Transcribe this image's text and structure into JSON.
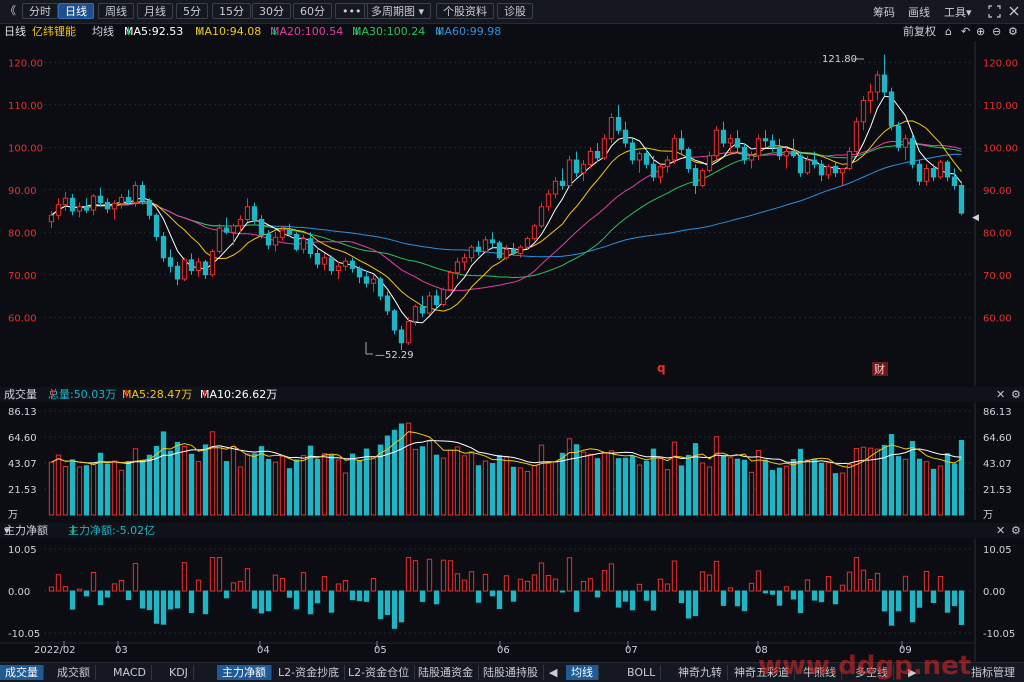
{
  "toolbar": {
    "back": "《",
    "items": [
      "分时",
      "日线",
      "周线",
      "月线",
      "5分",
      "15分",
      "30分",
      "60分",
      "•••",
      "多周期图",
      "个股资料",
      "诊股"
    ],
    "active_index": 1,
    "multi_dropdown_icon": "▾",
    "right_items": [
      "筹码",
      "画线",
      "工具"
    ],
    "tools_dropdown_icon": "▾"
  },
  "infobar": {
    "period": "日线",
    "stock_name": "亿纬锂能",
    "ma_label": "均线",
    "ma5": "MA5:92.53",
    "ma10": "MA10:94.08",
    "ma20": "MA20:100.54",
    "ma30": "MA30:100.24",
    "ma60": "MA60:99.98",
    "arrow_down": "↓",
    "adjust": "前复权"
  },
  "colors": {
    "up": "#e8302c",
    "down": "#1fb5c5",
    "ma5": "#ffffff",
    "ma10": "#f5c518",
    "ma20": "#e040a0",
    "ma30": "#2cc25a",
    "ma60": "#2f8fe0",
    "axis_text": "#e8302c"
  },
  "price_chart": {
    "y_ticks": [
      "120.00",
      "110.00",
      "100.00",
      "90.00",
      "80.00",
      "70.00",
      "60.00"
    ],
    "max_label": "121.80",
    "min_label": "52.29",
    "marker_q": "q",
    "marker_cai": "财",
    "current_marker": "◀"
  },
  "volume": {
    "title": "成交量",
    "total": "总量:50.03万",
    "ma5": "MA5:28.47万",
    "ma10": "MA10:26.62万",
    "arrow_up": "↑",
    "y_ticks": [
      "86.13",
      "64.60",
      "43.07",
      "21.53",
      "万"
    ]
  },
  "moneyflow": {
    "title": "主力净额",
    "dropdown_icon": "▾",
    "value": "主力净额:-5.02亿",
    "arrow_down": "↓",
    "y_ticks": [
      "10.05",
      "0.00",
      "-10.05"
    ]
  },
  "xaxis": [
    "2022/02",
    "03",
    "04",
    "05",
    "06",
    "07",
    "08",
    "09"
  ],
  "bottom_tabs_left": [
    "成交量",
    "成交额",
    "MACD",
    "KDJ",
    "主力净额",
    "L2-资金抄底",
    "L2-资金仓位",
    "陆股通资金",
    "陆股通持股"
  ],
  "bottom_tabs_right": [
    "均线",
    "BOLL",
    "神奇九转",
    "神奇五彩道",
    "牛熊线",
    "多空线"
  ],
  "bottom_tabs_end": "指标管理",
  "watermark": "www.ddgp.net",
  "chart_data": {
    "type": "candlestick",
    "title": "亿纬锂能 日线",
    "ylim": [
      45,
      125
    ],
    "x_range": [
      "2022/02",
      "2022/09"
    ],
    "annotations": {
      "high": 121.8,
      "low": 52.29
    },
    "ohlc": [
      [
        82.5,
        85.0,
        81.0,
        84.0
      ],
      [
        84.0,
        88.0,
        83.0,
        86.5
      ],
      [
        86.5,
        89.5,
        85.0,
        88.0
      ],
      [
        88.0,
        89.0,
        84.0,
        85.0
      ],
      [
        85.0,
        87.0,
        83.5,
        86.0
      ],
      [
        86.0,
        88.0,
        84.5,
        85.2
      ],
      [
        85.2,
        89.0,
        84.0,
        88.5
      ],
      [
        88.5,
        90.5,
        86.0,
        87.0
      ],
      [
        87.0,
        88.0,
        84.5,
        85.5
      ],
      [
        85.5,
        87.5,
        83.0,
        86.8
      ],
      [
        86.8,
        89.0,
        85.5,
        88.2
      ],
      [
        88.2,
        90.0,
        86.5,
        87.0
      ],
      [
        87.0,
        92.0,
        86.0,
        91.0
      ],
      [
        91.0,
        92.0,
        86.5,
        87.5
      ],
      [
        87.5,
        88.0,
        83.0,
        84.0
      ],
      [
        84.0,
        84.5,
        78.0,
        79.0
      ],
      [
        79.0,
        80.0,
        73.0,
        74.0
      ],
      [
        74.0,
        76.0,
        70.5,
        72.0
      ],
      [
        72.0,
        73.0,
        67.5,
        69.0
      ],
      [
        69.0,
        74.0,
        68.5,
        73.5
      ],
      [
        73.5,
        75.0,
        70.0,
        71.0
      ],
      [
        71.0,
        74.0,
        69.5,
        73.0
      ],
      [
        73.0,
        73.5,
        69.0,
        70.0
      ],
      [
        70.0,
        76.0,
        69.5,
        75.5
      ],
      [
        75.5,
        82.0,
        75.0,
        81.0
      ],
      [
        81.0,
        83.5,
        79.5,
        80.0
      ],
      [
        80.0,
        82.0,
        77.0,
        81.5
      ],
      [
        81.5,
        84.0,
        80.0,
        83.0
      ],
      [
        83.0,
        88.0,
        82.5,
        86.0
      ],
      [
        86.0,
        87.0,
        82.0,
        83.0
      ],
      [
        83.0,
        84.0,
        78.5,
        79.5
      ],
      [
        79.5,
        80.5,
        76.0,
        77.0
      ],
      [
        77.0,
        80.0,
        75.5,
        78.8
      ],
      [
        78.8,
        81.5,
        78.0,
        80.5
      ],
      [
        80.5,
        82.0,
        79.0,
        79.5
      ],
      [
        79.5,
        80.0,
        75.5,
        76.0
      ],
      [
        76.0,
        79.5,
        75.0,
        78.5
      ],
      [
        78.5,
        80.0,
        74.0,
        75.0
      ],
      [
        75.0,
        76.0,
        71.5,
        72.5
      ],
      [
        72.5,
        75.0,
        71.0,
        74.0
      ],
      [
        74.0,
        74.5,
        70.0,
        71.0
      ],
      [
        71.0,
        73.0,
        69.0,
        72.0
      ],
      [
        72.0,
        74.0,
        71.0,
        73.2
      ],
      [
        73.2,
        74.0,
        70.5,
        71.5
      ],
      [
        71.5,
        72.0,
        68.0,
        69.5
      ],
      [
        69.5,
        71.0,
        67.0,
        68.0
      ],
      [
        68.0,
        70.0,
        66.0,
        69.0
      ],
      [
        69.0,
        69.5,
        64.0,
        65.0
      ],
      [
        65.0,
        66.0,
        60.5,
        61.5
      ],
      [
        61.5,
        62.0,
        56.0,
        57.0
      ],
      [
        57.0,
        58.0,
        52.29,
        54.0
      ],
      [
        54.0,
        60.0,
        53.5,
        59.0
      ],
      [
        59.0,
        63.0,
        58.0,
        62.5
      ],
      [
        62.5,
        65.0,
        60.0,
        61.0
      ],
      [
        61.0,
        66.0,
        60.5,
        65.0
      ],
      [
        65.0,
        66.5,
        62.0,
        63.0
      ],
      [
        63.0,
        67.0,
        62.5,
        66.5
      ],
      [
        66.5,
        71.0,
        66.0,
        70.5
      ],
      [
        70.5,
        74.0,
        69.0,
        73.0
      ],
      [
        73.0,
        75.0,
        71.0,
        74.0
      ],
      [
        74.0,
        77.0,
        73.0,
        76.5
      ],
      [
        76.5,
        78.0,
        74.5,
        75.5
      ],
      [
        75.5,
        79.0,
        75.0,
        78.2
      ],
      [
        78.2,
        80.0,
        76.5,
        77.5
      ],
      [
        77.5,
        78.0,
        73.5,
        74.0
      ],
      [
        74.0,
        77.0,
        73.5,
        76.0
      ],
      [
        76.0,
        77.5,
        74.5,
        75.0
      ],
      [
        75.0,
        77.0,
        74.0,
        76.5
      ],
      [
        76.5,
        79.0,
        76.0,
        78.5
      ],
      [
        78.5,
        82.0,
        78.0,
        81.5
      ],
      [
        81.5,
        87.0,
        81.0,
        86.0
      ],
      [
        86.0,
        90.0,
        85.0,
        89.0
      ],
      [
        89.0,
        93.0,
        88.0,
        92.0
      ],
      [
        92.0,
        95.0,
        90.0,
        91.0
      ],
      [
        91.0,
        98.0,
        90.5,
        97.0
      ],
      [
        97.0,
        99.0,
        93.0,
        94.0
      ],
      [
        94.0,
        97.0,
        92.0,
        96.0
      ],
      [
        96.0,
        100.0,
        95.0,
        99.0
      ],
      [
        99.0,
        101.0,
        96.5,
        97.5
      ],
      [
        97.5,
        103.0,
        97.0,
        102.0
      ],
      [
        102.0,
        108.0,
        101.0,
        107.0
      ],
      [
        107.0,
        110.0,
        103.0,
        104.0
      ],
      [
        104.0,
        106.0,
        100.0,
        101.0
      ],
      [
        101.0,
        102.0,
        96.0,
        97.0
      ],
      [
        97.0,
        99.0,
        94.0,
        98.5
      ],
      [
        98.5,
        100.0,
        95.0,
        96.0
      ],
      [
        96.0,
        98.0,
        92.0,
        93.0
      ],
      [
        93.0,
        96.0,
        91.5,
        95.5
      ],
      [
        95.5,
        98.0,
        94.0,
        97.0
      ],
      [
        97.0,
        103.0,
        96.0,
        102.0
      ],
      [
        102.0,
        104.0,
        98.5,
        99.5
      ],
      [
        99.5,
        100.0,
        94.0,
        95.0
      ],
      [
        95.0,
        96.0,
        89.0,
        91.0
      ],
      [
        91.0,
        95.0,
        90.5,
        94.5
      ],
      [
        94.5,
        99.0,
        94.0,
        98.0
      ],
      [
        98.0,
        105.0,
        97.0,
        104.0
      ],
      [
        104.0,
        106.0,
        100.0,
        101.0
      ],
      [
        101.0,
        103.0,
        98.5,
        102.0
      ],
      [
        102.0,
        104.0,
        99.0,
        100.0
      ],
      [
        100.0,
        101.0,
        96.0,
        97.0
      ],
      [
        97.0,
        99.0,
        95.0,
        98.0
      ],
      [
        98.0,
        103.0,
        97.0,
        102.0
      ],
      [
        102.0,
        104.0,
        100.0,
        101.5
      ],
      [
        101.5,
        103.0,
        99.0,
        100.0
      ],
      [
        100.0,
        102.0,
        97.0,
        98.0
      ],
      [
        98.0,
        100.0,
        95.0,
        99.0
      ],
      [
        99.0,
        102.0,
        97.5,
        98.0
      ],
      [
        98.0,
        99.0,
        93.0,
        94.0
      ],
      [
        94.0,
        98.0,
        93.5,
        97.0
      ],
      [
        97.0,
        99.0,
        95.0,
        96.0
      ],
      [
        96.0,
        97.0,
        92.0,
        93.5
      ],
      [
        93.5,
        96.0,
        92.5,
        95.5
      ],
      [
        95.5,
        96.5,
        93.0,
        94.0
      ],
      [
        94.0,
        95.0,
        91.0,
        95.0
      ],
      [
        95.0,
        100.0,
        94.5,
        99.0
      ],
      [
        99.0,
        107.0,
        98.0,
        106.0
      ],
      [
        106.0,
        112.0,
        104.0,
        111.0
      ],
      [
        111.0,
        115.0,
        108.0,
        113.0
      ],
      [
        113.0,
        118.0,
        111.0,
        117.0
      ],
      [
        117.0,
        121.8,
        112.0,
        113.0
      ],
      [
        113.0,
        114.0,
        104.0,
        105.0
      ],
      [
        105.0,
        106.0,
        99.0,
        100.0
      ],
      [
        100.0,
        103.0,
        97.0,
        102.0
      ],
      [
        102.0,
        103.0,
        95.0,
        96.0
      ],
      [
        96.0,
        97.0,
        91.0,
        92.0
      ],
      [
        92.0,
        96.0,
        91.0,
        95.0
      ],
      [
        95.0,
        96.0,
        92.0,
        93.0
      ],
      [
        93.0,
        97.0,
        92.5,
        96.5
      ],
      [
        96.5,
        97.0,
        92.0,
        93.0
      ],
      [
        93.0,
        95.0,
        90.0,
        91.0
      ],
      [
        91.0,
        92.0,
        84.0,
        84.5
      ]
    ]
  }
}
